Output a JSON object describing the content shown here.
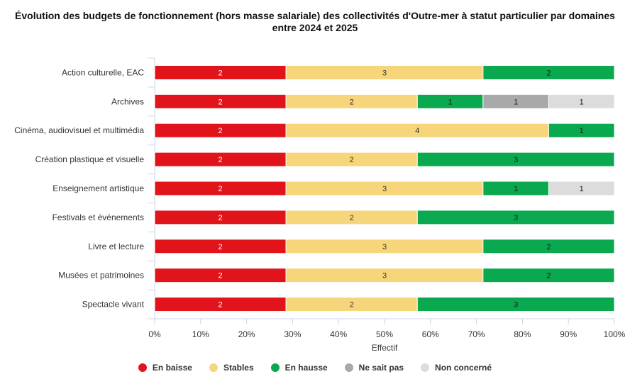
{
  "chart_data": {
    "type": "bar",
    "orientation": "horizontal",
    "stacked": "percent",
    "title_line1": "Évolution des budgets de fonctionnement (hors masse salariale) des collectivités d'Outre-mer à statut particulier par domaines",
    "title_line2": "entre 2024 et 2025",
    "xlabel": "Effectif",
    "ylabel": "",
    "xlim": [
      0,
      100
    ],
    "x_ticks": [
      "0%",
      "10%",
      "20%",
      "30%",
      "40%",
      "50%",
      "60%",
      "70%",
      "80%",
      "90%",
      "100%"
    ],
    "categories": [
      "Action culturelle, EAC",
      "Archives",
      "Cinéma, audiovisuel et multimédia",
      "Création plastique et visuelle",
      "Enseignement artistique",
      "Festivals et événements",
      "Livre et lecture",
      "Musées et patrimoines",
      "Spectacle vivant"
    ],
    "series": [
      {
        "name": "En baisse",
        "color": "#e2141b",
        "label_color": "#ffffff",
        "values": [
          2,
          2,
          2,
          2,
          2,
          2,
          2,
          2,
          2
        ]
      },
      {
        "name": "Stables",
        "color": "#f7d57a",
        "label_color": "#333333",
        "values": [
          3,
          2,
          4,
          2,
          3,
          2,
          3,
          3,
          2
        ]
      },
      {
        "name": "En hausse",
        "color": "#0aa84f",
        "label_color": "#1a1a1a",
        "values": [
          2,
          1,
          1,
          3,
          1,
          3,
          2,
          2,
          3
        ]
      },
      {
        "name": "Ne sait pas",
        "color": "#a9a9a9",
        "label_color": "#1a1a1a",
        "values": [
          0,
          1,
          0,
          0,
          0,
          0,
          0,
          0,
          0
        ]
      },
      {
        "name": "Non concerné",
        "color": "#dcdcdc",
        "label_color": "#1a1a1a",
        "values": [
          0,
          1,
          0,
          0,
          1,
          0,
          0,
          0,
          0
        ]
      }
    ],
    "legend_position": "bottom",
    "grid": false
  }
}
